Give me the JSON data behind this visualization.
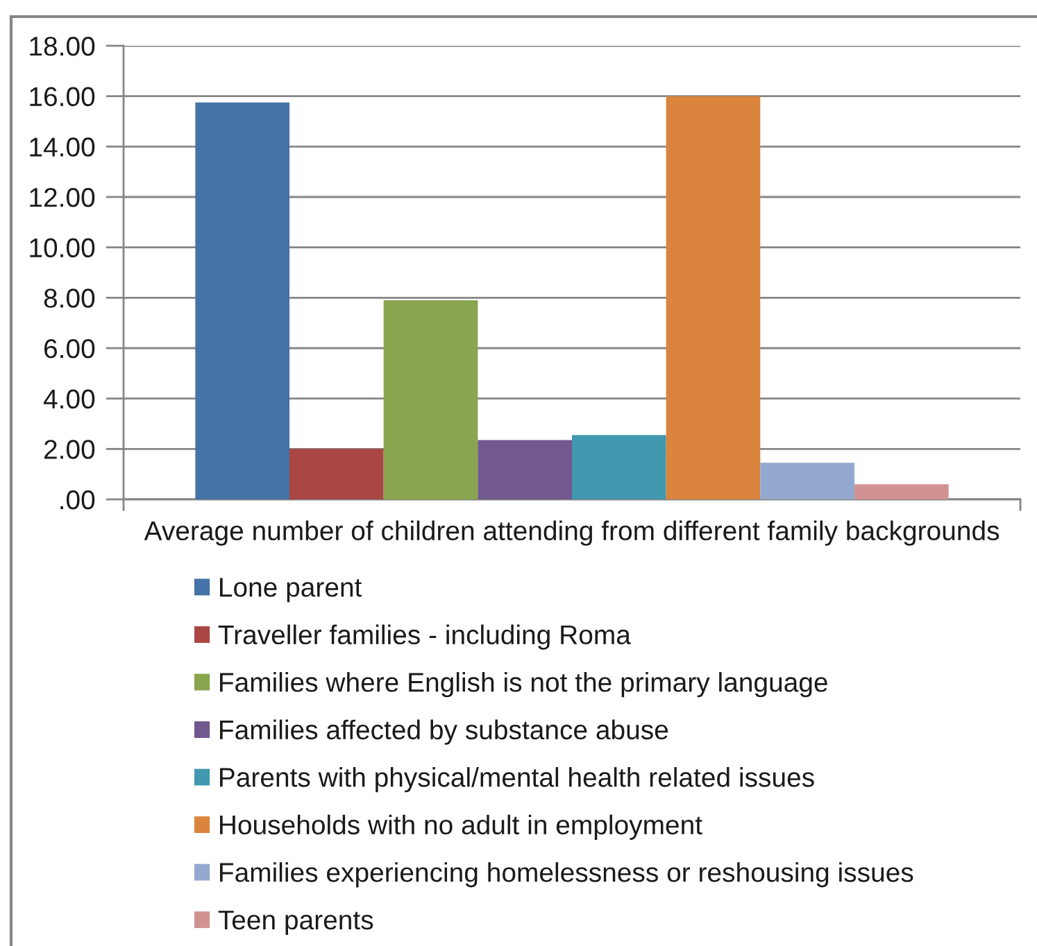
{
  "chart_data": {
    "type": "bar",
    "categories": [
      "Average number of children attending from different family backgrounds"
    ],
    "series": [
      {
        "name": "Lone parent",
        "color": "#4572a7",
        "values": [
          15.75
        ]
      },
      {
        "name": "Traveller families - including Roma",
        "color": "#aa4643",
        "values": [
          2.0
        ]
      },
      {
        "name": "Families where English is not the primary language",
        "color": "#89a54e",
        "values": [
          7.9
        ]
      },
      {
        "name": "Families affected by substance abuse",
        "color": "#71588f",
        "values": [
          2.35
        ]
      },
      {
        "name": "Parents with physical/mental health related issues",
        "color": "#4198af",
        "values": [
          2.55
        ]
      },
      {
        "name": "Households with no adult in employment",
        "color": "#db843d",
        "values": [
          16.0
        ]
      },
      {
        "name": "Families experiencing homelessness or reshousing issues",
        "color": "#93a9cf",
        "values": [
          1.45
        ]
      },
      {
        "name": "Teen parents",
        "color": "#d19392",
        "values": [
          0.6
        ]
      }
    ],
    "ylim": [
      0,
      18
    ],
    "yticks": [
      {
        "value": 0,
        "label": ".00"
      },
      {
        "value": 2,
        "label": "2.00"
      },
      {
        "value": 4,
        "label": "4.00"
      },
      {
        "value": 6,
        "label": "6.00"
      },
      {
        "value": 8,
        "label": "8.00"
      },
      {
        "value": 10,
        "label": "10.00"
      },
      {
        "value": 12,
        "label": "12.00"
      },
      {
        "value": 14,
        "label": "14.00"
      },
      {
        "value": 16,
        "label": "16.00"
      },
      {
        "value": 18,
        "label": "18.00"
      }
    ],
    "grid": "y",
    "legend": "bottom"
  }
}
